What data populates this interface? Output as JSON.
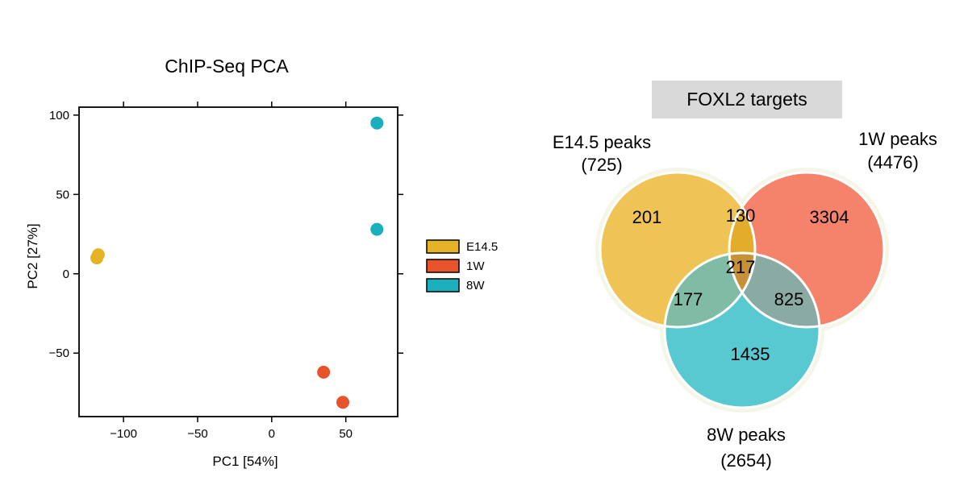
{
  "chart_data": [
    {
      "type": "scatter",
      "title": "ChIP-Seq PCA",
      "xlabel": "PC1 [54%]",
      "ylabel": "PC2  [27%]",
      "xlim": [
        -130,
        85
      ],
      "ylim": [
        -90,
        105
      ],
      "x_ticks": [
        -100,
        -50,
        0,
        50
      ],
      "x_tick_labels": [
        "−100",
        "−50",
        "0",
        "50"
      ],
      "y_ticks": [
        100,
        50,
        0,
        -50
      ],
      "y_tick_labels": [
        "100",
        "50",
        "0",
        "−50"
      ],
      "grid": false,
      "legend_position": "right",
      "series": [
        {
          "name": "E14.5",
          "color": "#E6B326",
          "points": [
            [
              -117,
              12
            ],
            [
              -118,
              10
            ]
          ]
        },
        {
          "name": "1W",
          "color": "#E8532B",
          "points": [
            [
              35,
              -62
            ],
            [
              48,
              -81
            ]
          ]
        },
        {
          "name": "8W",
          "color": "#1BAFBC",
          "points": [
            [
              71,
              95
            ],
            [
              71,
              28
            ]
          ]
        }
      ]
    },
    {
      "type": "venn",
      "title": "FOXL2 targets",
      "sets": [
        {
          "id": "e145",
          "name": "E14.5 peaks",
          "total": "(725)",
          "color": "#EFC454"
        },
        {
          "id": "w1",
          "name": "1W peaks",
          "total": "(4476)",
          "color": "#F5826A"
        },
        {
          "id": "w8",
          "name": "8W peaks",
          "total": "(2654)",
          "color": "#58C8D1"
        }
      ],
      "regions": {
        "e145_only": "201",
        "w1_only": "3304",
        "w8_only": "1435",
        "e145_w1": "130",
        "e145_w8": "177",
        "w1_w8": "825",
        "all": "217"
      },
      "region_colors": {
        "e145_w1": "#E2AD2B",
        "e145_w8": "#80BCA5",
        "w1_w8": "#8AABA3",
        "all": "#C69138"
      }
    }
  ]
}
